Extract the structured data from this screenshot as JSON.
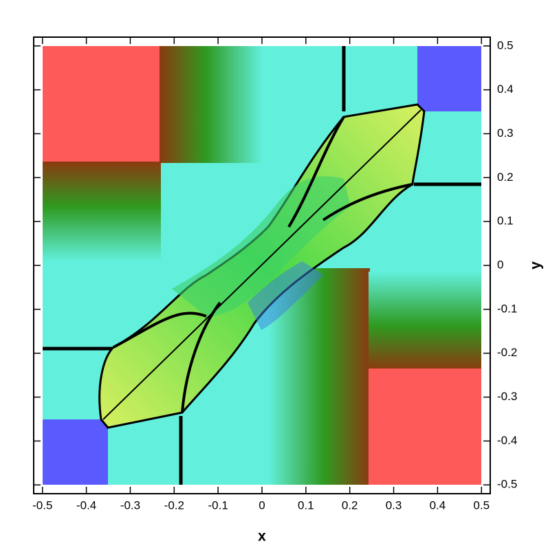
{
  "chart_data": {
    "type": "contour",
    "x_label": "x",
    "y_label": "y",
    "xlim": [
      -0.52,
      0.52
    ],
    "ylim": [
      -0.52,
      0.52
    ],
    "xticks": [
      -0.5,
      -0.4,
      -0.3,
      -0.2,
      -0.1,
      0,
      0.1,
      0.2,
      0.3,
      0.4,
      0.5
    ],
    "yticks": [
      -0.5,
      -0.4,
      -0.3,
      -0.2,
      -0.1,
      0,
      0.1,
      0.2,
      0.3,
      0.4,
      0.5
    ]
  }
}
